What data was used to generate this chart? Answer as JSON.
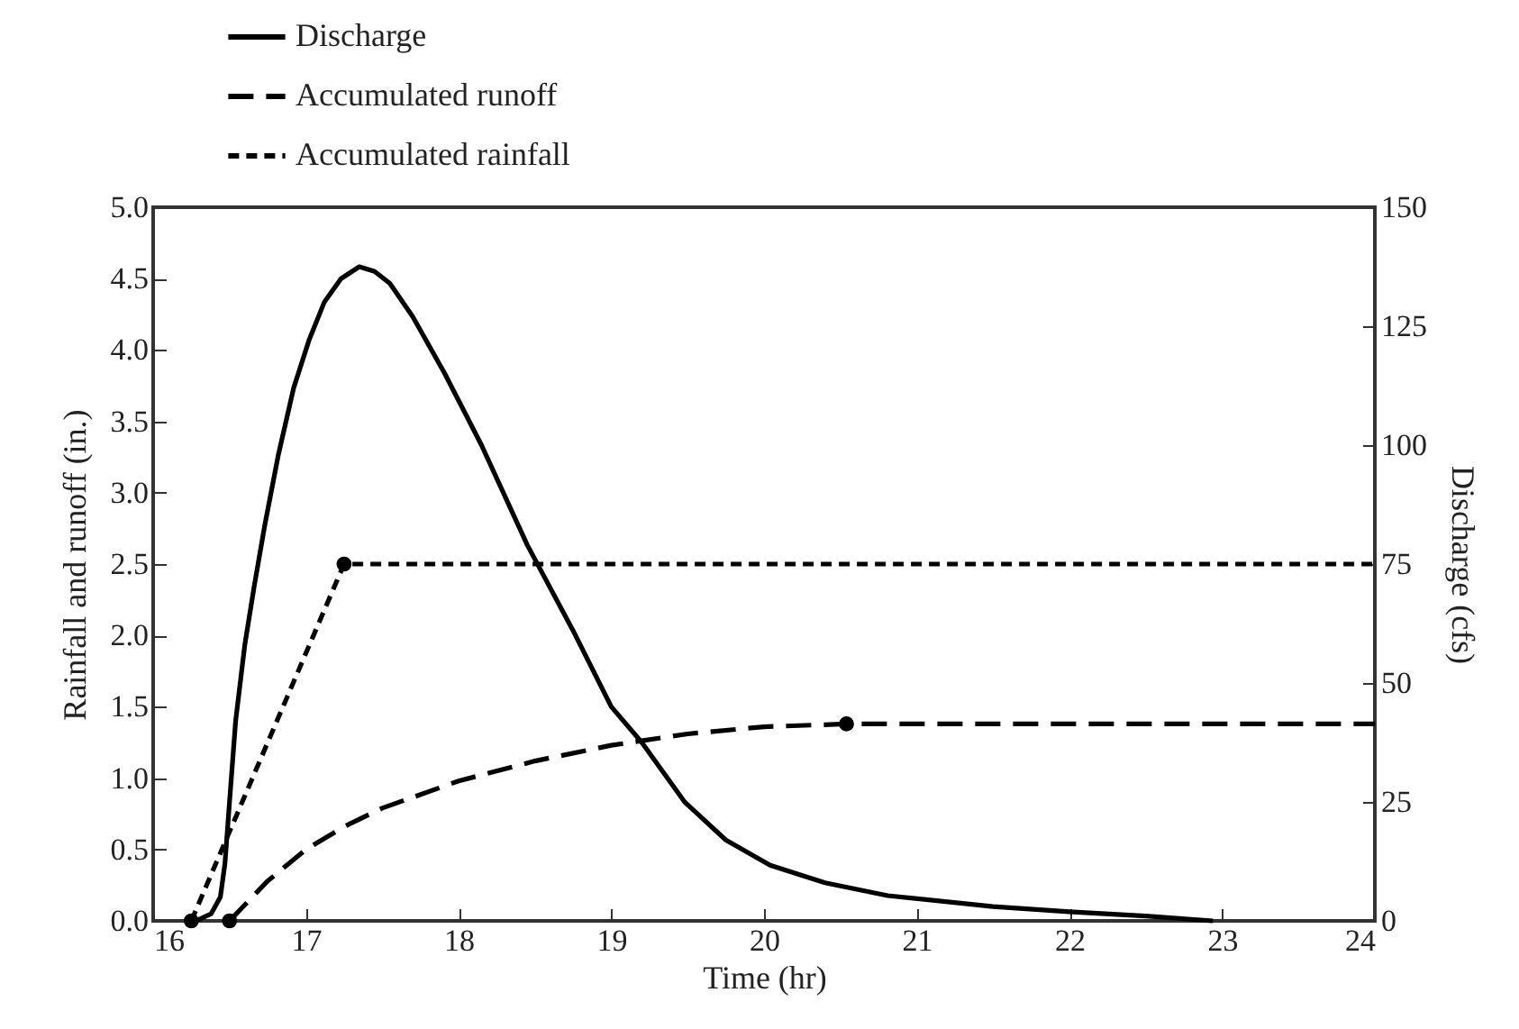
{
  "chart_data": {
    "type": "line",
    "xlabel": "Time (hr)",
    "ylabel": "Rainfall and runoff (in.)",
    "y2label": "Discharge (cfs)",
    "xlim": [
      16,
      24
    ],
    "xticks": [
      16,
      17,
      18,
      19,
      20,
      21,
      22,
      23,
      24
    ],
    "ylim": [
      0,
      5
    ],
    "yticks": [
      {
        "value": 0,
        "label": "0.0"
      },
      0.5,
      {
        "value": 1,
        "label": "1.0"
      },
      1.5,
      {
        "value": 2,
        "label": "2.0"
      },
      2.5,
      {
        "value": 3,
        "label": "3.0"
      },
      3.5,
      {
        "value": 4,
        "label": "4.0"
      },
      4.5,
      {
        "value": 5,
        "label": "5.0"
      }
    ],
    "y2lim": [
      0,
      150
    ],
    "y2ticks": [
      0,
      25,
      50,
      75,
      100,
      125,
      150
    ],
    "legend": "top left",
    "grid": false,
    "series": [
      {
        "name": "Discharge",
        "color": "#000000",
        "axis": "y2",
        "line_style": "solid",
        "x": [
          16.28,
          16.38,
          16.44,
          16.47,
          16.5,
          16.54,
          16.6,
          16.66,
          16.73,
          16.82,
          16.92,
          17.02,
          17.12,
          17.23,
          17.35,
          17.45,
          17.55,
          17.7,
          17.91,
          18.15,
          18.45,
          18.75,
          19.0,
          19.2,
          19.48,
          19.75,
          20.04,
          20.4,
          20.81,
          21.5,
          22.0,
          22.5,
          22.94
        ],
        "values": [
          0,
          1.5,
          5,
          12,
          25,
          42,
          58,
          70,
          83,
          98,
          112,
          122,
          130,
          135,
          137.5,
          136.5,
          134,
          127,
          115,
          100,
          79,
          61,
          45,
          37.5,
          25,
          17,
          11.7,
          8,
          5.3,
          3,
          1.9,
          1,
          0
        ]
      },
      {
        "name": "Accumulated runoff",
        "color": "#000000",
        "axis": "y",
        "line_style": "dashed",
        "x": [
          16.5,
          16.75,
          17.0,
          17.25,
          17.5,
          18.0,
          18.5,
          19.0,
          19.5,
          20.0,
          20.54,
          24
        ],
        "values": [
          0,
          0.28,
          0.5,
          0.66,
          0.79,
          0.98,
          1.12,
          1.23,
          1.31,
          1.36,
          1.38,
          1.38
        ]
      },
      {
        "name": "Accumulated rainfall",
        "color": "#000000",
        "axis": "y",
        "line_style": "dotted",
        "x": [
          16.25,
          17.25,
          24
        ],
        "values": [
          0,
          2.5,
          2.5
        ]
      },
      {
        "type": "scatter",
        "color": "#000000",
        "axis": "y",
        "marker": "circle",
        "x": [
          16.25,
          16.5,
          17.25,
          20.54
        ],
        "values": [
          0,
          0,
          2.5,
          1.38
        ]
      }
    ]
  }
}
